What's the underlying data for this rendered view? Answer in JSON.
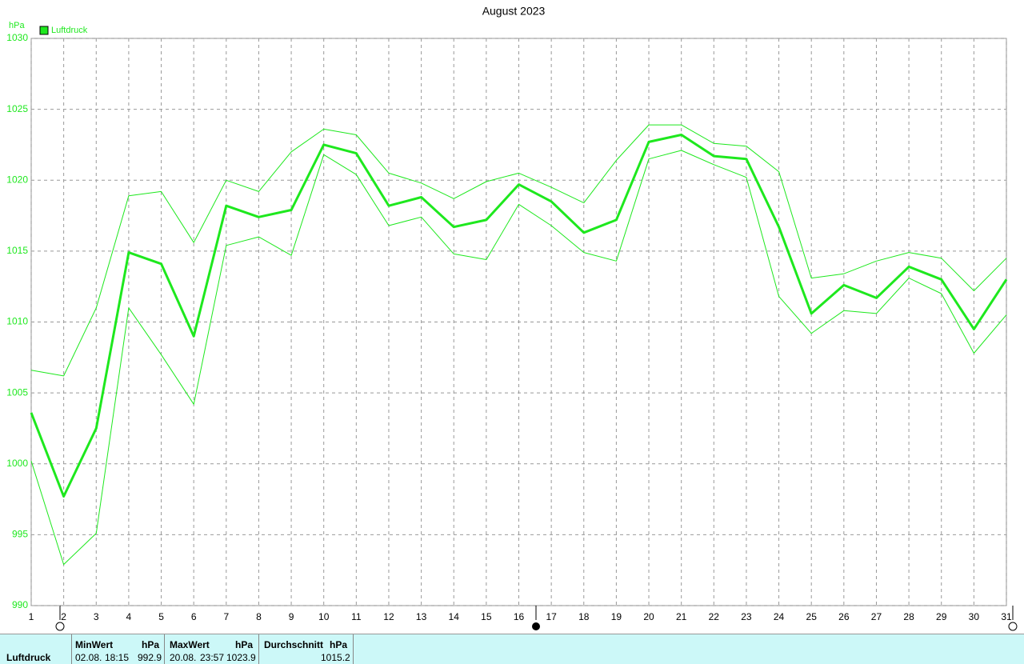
{
  "chart_data": {
    "type": "line",
    "title": "August 2023",
    "y_label": "hPa",
    "x": [
      1,
      2,
      3,
      4,
      5,
      6,
      7,
      8,
      9,
      10,
      11,
      12,
      13,
      14,
      15,
      16,
      17,
      18,
      19,
      20,
      21,
      22,
      23,
      24,
      25,
      26,
      27,
      28,
      29,
      30,
      31
    ],
    "xlim": [
      1,
      31
    ],
    "xticks": [
      1,
      2,
      3,
      4,
      5,
      6,
      7,
      8,
      9,
      10,
      11,
      12,
      13,
      14,
      15,
      16,
      17,
      18,
      19,
      20,
      21,
      22,
      23,
      24,
      25,
      26,
      27,
      28,
      29,
      30,
      31
    ],
    "ylim": [
      990,
      1030
    ],
    "yticks": [
      990,
      995,
      1000,
      1005,
      1010,
      1015,
      1020,
      1025,
      1030
    ],
    "grid": true,
    "series": [
      {
        "name": "Luftdruck",
        "color": "#1ee81e",
        "width": 3,
        "values": [
          1003.6,
          997.7,
          1002.5,
          1014.9,
          1014.1,
          1009.0,
          1018.2,
          1017.4,
          1017.9,
          1022.5,
          1021.9,
          1018.2,
          1018.8,
          1016.7,
          1017.2,
          1019.7,
          1018.5,
          1016.3,
          1017.2,
          1022.7,
          1023.2,
          1021.7,
          1021.5,
          1016.7,
          1010.6,
          1012.6,
          1011.7,
          1013.9,
          1013.0,
          1009.5,
          1013.0
        ]
      },
      {
        "color": "#1ee81e",
        "width": 1,
        "values": [
          1006.6,
          1006.2,
          1011.0,
          1018.9,
          1019.2,
          1015.6,
          1020.0,
          1019.2,
          1022.0,
          1023.6,
          1023.2,
          1020.5,
          1019.8,
          1018.7,
          1019.9,
          1020.5,
          1019.5,
          1018.4,
          1021.4,
          1023.9,
          1023.9,
          1022.6,
          1022.4,
          1020.6,
          1013.1,
          1013.4,
          1014.3,
          1014.9,
          1014.5,
          1012.2,
          1014.5
        ]
      },
      {
        "color": "#1ee81e",
        "width": 1,
        "values": [
          1000.2,
          992.9,
          995.1,
          1011.0,
          1007.7,
          1004.2,
          1015.4,
          1016.0,
          1014.7,
          1021.8,
          1020.4,
          1016.8,
          1017.4,
          1014.8,
          1014.4,
          1018.3,
          1016.8,
          1014.9,
          1014.3,
          1021.5,
          1022.1,
          1021.1,
          1020.2,
          1011.8,
          1009.2,
          1010.8,
          1010.6,
          1013.1,
          1012.0,
          1007.8,
          1010.5
        ]
      }
    ]
  },
  "stats": {
    "row_label": "Luftdruck",
    "min": {
      "title": "MinWert",
      "unit": "hPa",
      "date": "02.08.",
      "time": "18:15",
      "value": 992.9
    },
    "max": {
      "title": "MaxWert",
      "unit": "hPa",
      "date": "20.08.",
      "time": "23:57",
      "value": 1023.9
    },
    "avg": {
      "title": "Durchschnitt",
      "unit": "hPa",
      "value": 1015.2
    }
  }
}
